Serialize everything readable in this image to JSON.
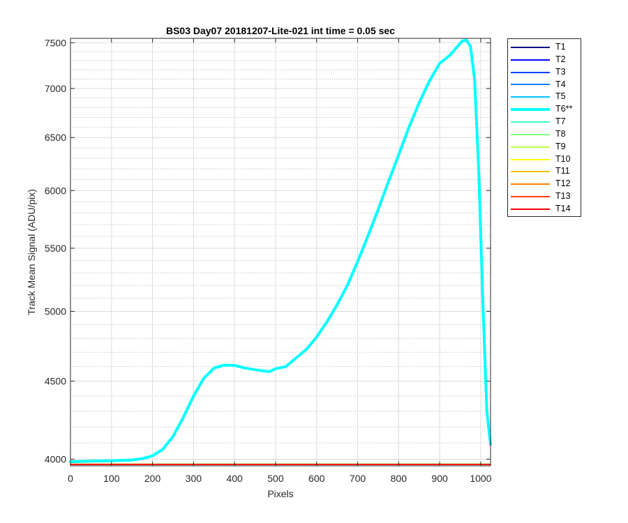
{
  "chart_data": {
    "type": "line",
    "title": "BS03 Day07 20181207-Lite-021 int time = 0.05 sec",
    "xlabel": "Pixels",
    "ylabel": "Track Mean Signal (ADU/pix)",
    "xlim": [
      0,
      1024
    ],
    "ylim": [
      3960,
      7550
    ],
    "y_scale": "log",
    "x_ticks": [
      0,
      100,
      200,
      300,
      400,
      500,
      600,
      700,
      800,
      900,
      1000
    ],
    "y_ticks": [
      4000,
      4500,
      5000,
      5500,
      6000,
      6500,
      7000,
      7500
    ],
    "grid": "on (major and minor)",
    "legend_location": "outside right, top",
    "series": [
      {
        "name": "T1",
        "color": "#000080",
        "highlight": false,
        "x": [
          0,
          1024
        ],
        "y": [
          3970,
          3970
        ]
      },
      {
        "name": "T2",
        "color": "#0000ff",
        "highlight": false,
        "x": [
          0,
          1024
        ],
        "y": [
          3970,
          3970
        ]
      },
      {
        "name": "T3",
        "color": "#0040ff",
        "highlight": false,
        "x": [
          0,
          1024
        ],
        "y": [
          3970,
          3970
        ]
      },
      {
        "name": "T4",
        "color": "#0080ff",
        "highlight": false,
        "x": [
          0,
          1024
        ],
        "y": [
          3970,
          3970
        ]
      },
      {
        "name": "T5",
        "color": "#00c0ff",
        "highlight": false,
        "x": [
          0,
          1024
        ],
        "y": [
          3970,
          3970
        ]
      },
      {
        "name": "T6**",
        "color": "#00ffff",
        "highlight": true,
        "x": [
          0,
          50,
          100,
          150,
          175,
          200,
          225,
          250,
          275,
          300,
          325,
          350,
          375,
          400,
          425,
          450,
          475,
          485,
          500,
          525,
          550,
          575,
          600,
          625,
          650,
          675,
          700,
          725,
          750,
          775,
          800,
          825,
          850,
          875,
          900,
          925,
          940,
          955,
          965,
          975,
          985,
          995,
          1005,
          1015,
          1024
        ],
        "y": [
          3985,
          3988,
          3990,
          3995,
          4003,
          4020,
          4060,
          4140,
          4260,
          4400,
          4520,
          4590,
          4610,
          4608,
          4590,
          4578,
          4568,
          4565,
          4585,
          4600,
          4660,
          4720,
          4810,
          4920,
          5050,
          5200,
          5390,
          5600,
          5830,
          6080,
          6330,
          6600,
          6850,
          7080,
          7270,
          7360,
          7440,
          7520,
          7530,
          7460,
          7100,
          6200,
          5100,
          4300,
          4090
        ]
      },
      {
        "name": "T7",
        "color": "#40ffc0",
        "highlight": false,
        "x": [
          0,
          1024
        ],
        "y": [
          3970,
          3970
        ]
      },
      {
        "name": "T8",
        "color": "#80ff80",
        "highlight": false,
        "x": [
          0,
          1024
        ],
        "y": [
          3970,
          3970
        ]
      },
      {
        "name": "T9",
        "color": "#c0ff40",
        "highlight": false,
        "x": [
          0,
          1024
        ],
        "y": [
          3970,
          3970
        ]
      },
      {
        "name": "T10",
        "color": "#ffff00",
        "highlight": false,
        "x": [
          0,
          1024
        ],
        "y": [
          3970,
          3970
        ]
      },
      {
        "name": "T11",
        "color": "#ffc000",
        "highlight": false,
        "x": [
          0,
          1024
        ],
        "y": [
          3970,
          3970
        ]
      },
      {
        "name": "T12",
        "color": "#ff8000",
        "highlight": false,
        "x": [
          0,
          1024
        ],
        "y": [
          3969,
          3969
        ]
      },
      {
        "name": "T13",
        "color": "#ff4000",
        "highlight": false,
        "x": [
          0,
          1024
        ],
        "y": [
          3968,
          3968
        ]
      },
      {
        "name": "T14",
        "color": "#ff0000",
        "highlight": false,
        "x": [
          0,
          1024
        ],
        "y": [
          3967,
          3967
        ]
      }
    ]
  }
}
